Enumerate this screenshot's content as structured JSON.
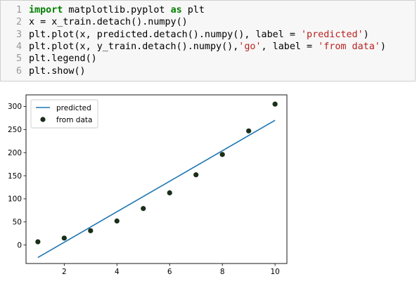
{
  "code_cell": {
    "lines": [
      {
        "num": "1",
        "tokens": [
          {
            "t": "kw",
            "v": "import"
          },
          {
            "t": "code",
            "v": " matplotlib.pyplot "
          },
          {
            "t": "kw",
            "v": "as"
          },
          {
            "t": "code",
            "v": " plt"
          }
        ]
      },
      {
        "num": "2",
        "tokens": [
          {
            "t": "code",
            "v": "x = x_train.detach().numpy()"
          }
        ]
      },
      {
        "num": "3",
        "tokens": [
          {
            "t": "code",
            "v": "plt.plot(x, predicted.detach().numpy(), label = "
          },
          {
            "t": "str",
            "v": "'predicted'"
          },
          {
            "t": "code",
            "v": ")"
          }
        ]
      },
      {
        "num": "4",
        "tokens": [
          {
            "t": "code",
            "v": "plt.plot(x, y_train.detach().numpy(),"
          },
          {
            "t": "str",
            "v": "'go'"
          },
          {
            "t": "code",
            "v": ", label = "
          },
          {
            "t": "str",
            "v": "'from data'"
          },
          {
            "t": "code",
            "v": ")"
          }
        ]
      },
      {
        "num": "5",
        "tokens": [
          {
            "t": "code",
            "v": "plt.legend()"
          }
        ]
      },
      {
        "num": "6",
        "tokens": [
          {
            "t": "code",
            "v": "plt.show()"
          }
        ]
      }
    ]
  },
  "chart_data": {
    "type": "line",
    "xlim": [
      0.55,
      10.45
    ],
    "ylim": [
      -40,
      325
    ],
    "xticks": [
      2,
      4,
      6,
      8,
      10
    ],
    "yticks": [
      0,
      50,
      100,
      150,
      200,
      250,
      300
    ],
    "grid": false,
    "legend_position": "upper-left",
    "series": [
      {
        "name": "predicted",
        "kind": "line",
        "color": "#1f77b4",
        "x": [
          1,
          10
        ],
        "y": [
          -27,
          270
        ]
      },
      {
        "name": "from data",
        "kind": "scatter",
        "color": "#1a2e1a",
        "x": [
          1,
          2,
          3,
          4,
          5,
          6,
          7,
          8,
          9,
          10
        ],
        "y": [
          7,
          15,
          31,
          52,
          79,
          113,
          152,
          196,
          247,
          305
        ]
      }
    ]
  }
}
